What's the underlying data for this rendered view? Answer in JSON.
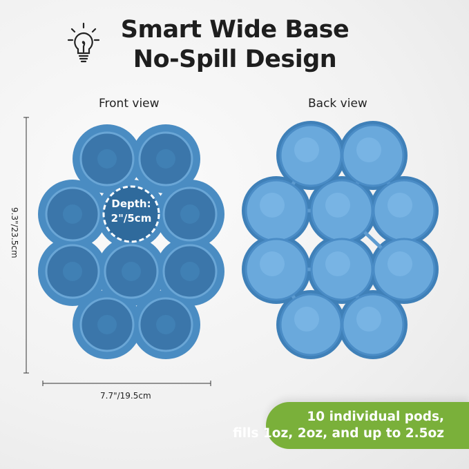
{
  "headline": {
    "line1": "Smart Wide Base",
    "line2": "No-Spill Design",
    "icon": "lightbulb-icon"
  },
  "views": {
    "front": "Front view",
    "back": "Back view"
  },
  "depth": {
    "line1": "Depth:",
    "line2": "2\"/5cm"
  },
  "dimensions": {
    "height": "9.3\"/23.5cm",
    "width": "7.7\"/19.5cm"
  },
  "banner": {
    "line1": "10 individual pods,",
    "line2": "fills 1oz, 2oz, and up to 2.5oz"
  },
  "colors": {
    "tray_front": "#4a8cc2",
    "pod_front": "#3b76aa",
    "tray_back": "#3f80b8",
    "pod_back": "#6aa9dc",
    "banner": "#7ab03a"
  }
}
